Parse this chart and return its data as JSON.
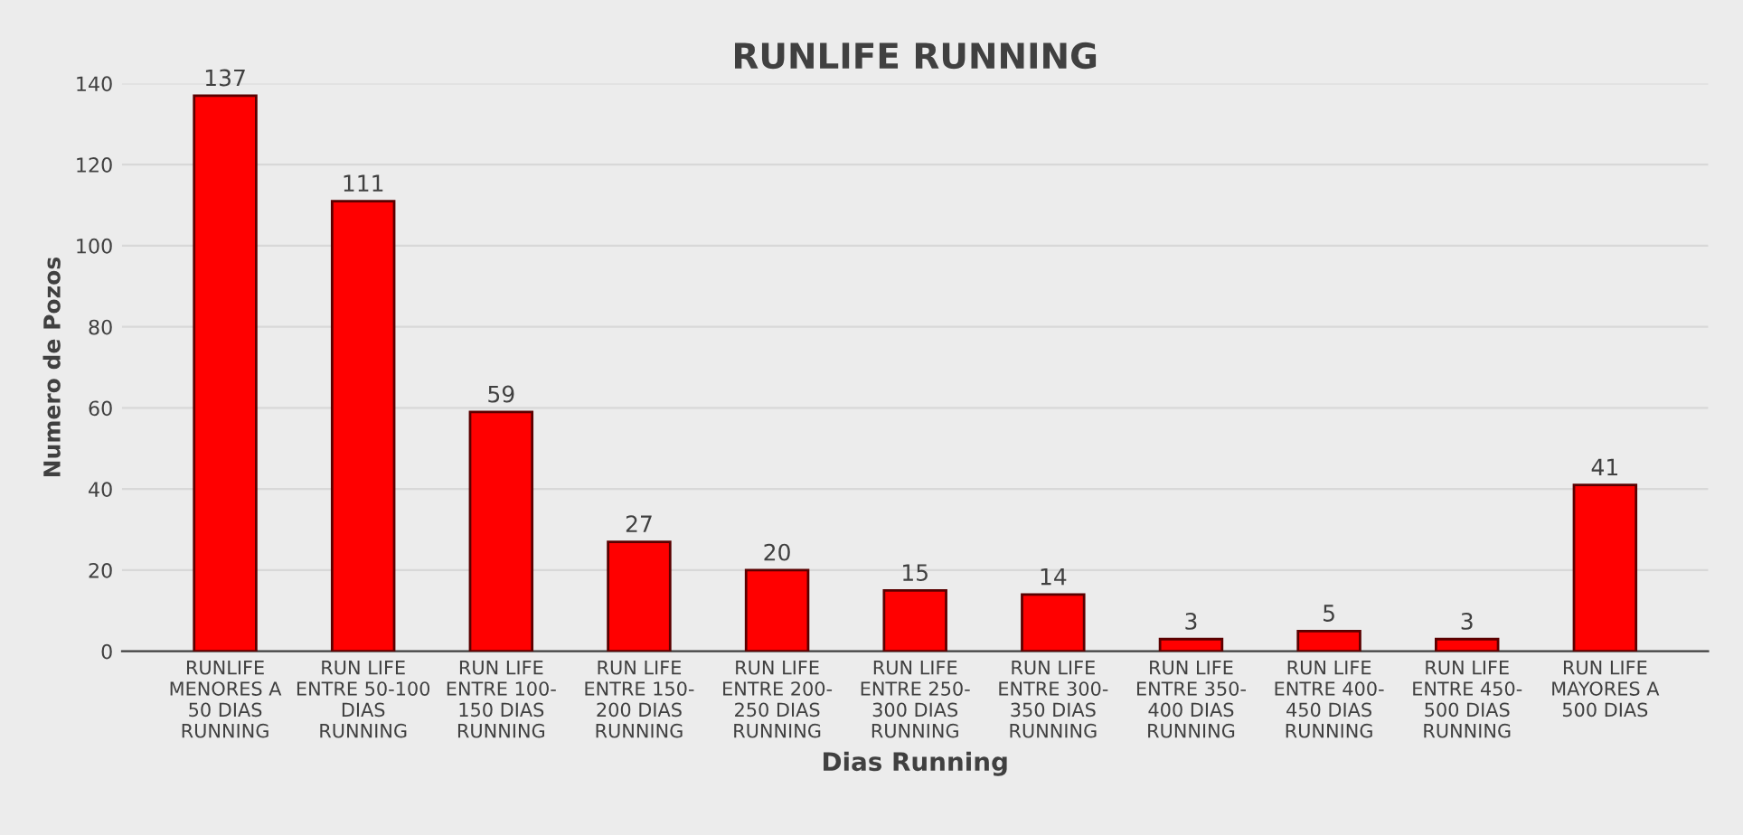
{
  "chart_data": {
    "type": "bar",
    "title": "RUNLIFE RUNNING",
    "xlabel": "Dias Running",
    "ylabel": "Numero de Pozos",
    "categories": [
      "RUNLIFE\nMENORES A\n50 DIAS\nRUNNING",
      "RUN LIFE\nENTRE 50-100\nDIAS\nRUNNING",
      "RUN LIFE\nENTRE 100-\n150 DIAS\nRUNNING",
      "RUN LIFE\nENTRE 150-\n200 DIAS\nRUNNING",
      "RUN LIFE\nENTRE 200-\n250 DIAS\nRUNNING",
      "RUN LIFE\nENTRE 250-\n300 DIAS\nRUNNING",
      "RUN LIFE\nENTRE 300-\n350 DIAS\nRUNNING",
      "RUN LIFE\nENTRE 350-\n400 DIAS\nRUNNING",
      "RUN LIFE\nENTRE 400-\n450 DIAS\nRUNNING",
      "RUN LIFE\nENTRE 450-\n500 DIAS\nRUNNING",
      "RUN LIFE\nMAYORES A\n500 DIAS"
    ],
    "values": [
      137,
      111,
      59,
      27,
      20,
      15,
      14,
      3,
      5,
      3,
      41
    ],
    "color": "#ff0000",
    "ylim": [
      0,
      140
    ],
    "yticks": [
      0,
      20,
      40,
      60,
      80,
      100,
      120,
      140
    ],
    "grid": "y",
    "data_labels": true
  }
}
